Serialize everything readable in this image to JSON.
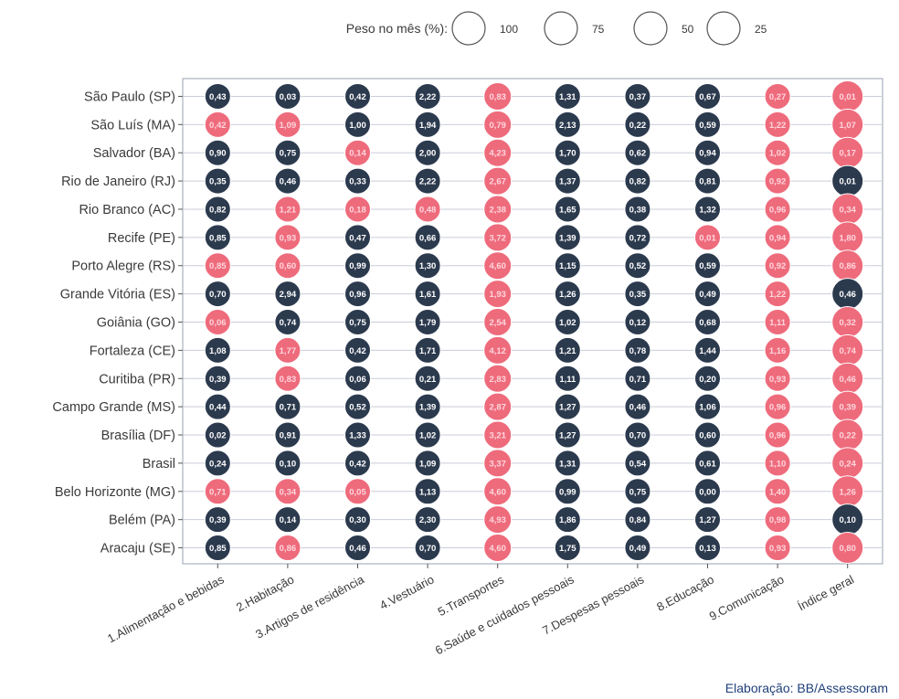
{
  "chart_data": {
    "type": "bubble-matrix",
    "legend": {
      "title": "Peso no mês (%):",
      "sizes": [
        "100",
        "75",
        "50",
        "25"
      ]
    },
    "categories": [
      "1.Alimentação e bebidas",
      "2.Habitação",
      "3.Artigos de residência",
      "4.Vestuário",
      "5.Transportes",
      "6.Saúde e cuidados pessoais",
      "7.Despesas pessoais",
      "8.Educação",
      "9.Comunicação",
      "Índice geral"
    ],
    "colors": {
      "positive": "#2c3a4e",
      "negative": "#ee6b7c",
      "grid": "#c9ced8",
      "frame": "#9aa3b3"
    },
    "rows": [
      {
        "name": "São Paulo (SP)",
        "values": [
          "0,43",
          "0,03",
          "0,42",
          "2,22",
          "-0,83",
          "1,31",
          "0,37",
          "0,67",
          "-0,27",
          "-0,01"
        ]
      },
      {
        "name": "São Luís (MA)",
        "values": [
          "-0,42",
          "-1,09",
          "1,00",
          "1,94",
          "-0,79",
          "2,13",
          "0,22",
          "0,59",
          "-1,22",
          "-1,07"
        ]
      },
      {
        "name": "Salvador (BA)",
        "values": [
          "0,90",
          "0,75",
          "-0,14",
          "2,00",
          "-4,23",
          "1,70",
          "0,62",
          "0,94",
          "-1,02",
          "-0,17"
        ]
      },
      {
        "name": "Rio de Janeiro (RJ)",
        "values": [
          "0,35",
          "0,46",
          "0,33",
          "2,22",
          "-2,67",
          "1,37",
          "0,82",
          "0,81",
          "-0,92",
          "0,01"
        ]
      },
      {
        "name": "Rio Branco (AC)",
        "values": [
          "0,82",
          "-1,21",
          "-0,18",
          "-0,48",
          "-2,38",
          "1,65",
          "0,38",
          "1,32",
          "-0,96",
          "-0,34"
        ]
      },
      {
        "name": "Recife (PE)",
        "values": [
          "0,85",
          "-0,93",
          "0,47",
          "0,66",
          "-3,72",
          "1,39",
          "0,72",
          "-0,01",
          "-0,94",
          "-1,80"
        ]
      },
      {
        "name": "Porto Alegre (RS)",
        "values": [
          "-0,85",
          "-0,60",
          "0,99",
          "1,30",
          "-4,60",
          "1,15",
          "0,52",
          "0,59",
          "-0,92",
          "-0,86"
        ]
      },
      {
        "name": "Grande Vitória (ES)",
        "values": [
          "0,70",
          "2,94",
          "0,96",
          "1,61",
          "-1,93",
          "1,26",
          "0,35",
          "0,49",
          "-1,22",
          "0,46"
        ]
      },
      {
        "name": "Goiânia (GO)",
        "values": [
          "-0,06",
          "0,74",
          "0,75",
          "1,79",
          "-2,54",
          "1,02",
          "0,12",
          "0,68",
          "-1,11",
          "-0,32"
        ]
      },
      {
        "name": "Fortaleza (CE)",
        "values": [
          "1,08",
          "-1,77",
          "0,42",
          "1,71",
          "-4,12",
          "1,21",
          "0,78",
          "1,44",
          "-1,16",
          "-0,74"
        ]
      },
      {
        "name": "Curitiba (PR)",
        "values": [
          "0,39",
          "-0,83",
          "0,06",
          "0,21",
          "-2,83",
          "1,11",
          "0,71",
          "0,20",
          "-0,93",
          "-0,46"
        ]
      },
      {
        "name": "Campo Grande (MS)",
        "values": [
          "0,44",
          "0,71",
          "0,52",
          "1,39",
          "-2,87",
          "1,27",
          "0,46",
          "1,06",
          "-0,96",
          "-0,39"
        ]
      },
      {
        "name": "Brasília (DF)",
        "values": [
          "0,02",
          "0,91",
          "1,33",
          "1,02",
          "-3,21",
          "1,27",
          "0,70",
          "0,60",
          "-0,96",
          "-0,22"
        ]
      },
      {
        "name": "Brasil",
        "values": [
          "0,24",
          "0,10",
          "0,42",
          "1,09",
          "-3,37",
          "1,31",
          "0,54",
          "0,61",
          "-1,10",
          "-0,24"
        ]
      },
      {
        "name": "Belo Horizonte (MG)",
        "values": [
          "-0,71",
          "-0,34",
          "-0,05",
          "1,13",
          "-4,60",
          "0,99",
          "0,75",
          "0,00",
          "-1,40",
          "-1,26"
        ]
      },
      {
        "name": "Belém (PA)",
        "values": [
          "0,39",
          "0,14",
          "0,30",
          "2,30",
          "-4,93",
          "1,86",
          "0,84",
          "1,27",
          "-0,98",
          "0,10"
        ]
      },
      {
        "name": "Aracaju (SE)",
        "values": [
          "0,85",
          "-0,86",
          "0,46",
          "0,70",
          "-4,60",
          "1,75",
          "0,49",
          "0,13",
          "-0,93",
          "-0,80"
        ]
      }
    ]
  },
  "footer": {
    "credit": "Elaboração: BB/Assessoram"
  }
}
